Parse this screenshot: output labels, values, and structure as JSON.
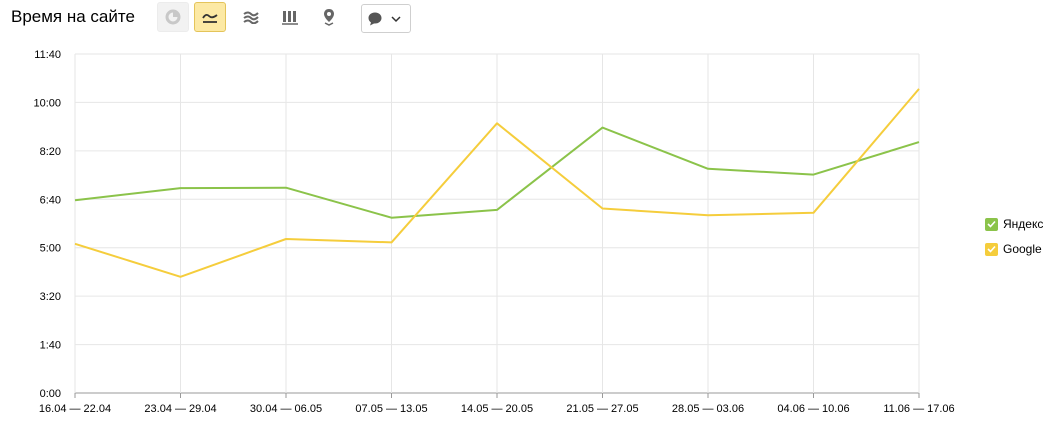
{
  "header": {
    "title": "Время на сайте",
    "buttons": [
      {
        "icon": "pie-chart-icon",
        "active": false
      },
      {
        "icon": "line-chart-icon",
        "active": true
      },
      {
        "icon": "area-chart-icon",
        "active": false
      },
      {
        "icon": "bar-chart-icon",
        "active": false
      },
      {
        "icon": "map-pin-icon",
        "active": false
      },
      {
        "icon": "comment-icon",
        "active": false
      }
    ]
  },
  "colors": {
    "yandex": "#8bc34a",
    "google": "#f5cd3c",
    "grid": "#e6e6e6",
    "active_button": "#fce9a4"
  },
  "chart_data": {
    "type": "line",
    "categories": [
      "16.04 — 22.04",
      "23.04 — 29.04",
      "30.04 — 06.05",
      "07.05 — 13.05",
      "14.05 — 20.05",
      "21.05 — 27.05",
      "28.05 — 03.06",
      "04.06 — 10.06",
      "11.06 — 17.06"
    ],
    "y_ticks": [
      "0:00",
      "1:40",
      "3:20",
      "5:00",
      "6:40",
      "8:20",
      "10:00",
      "11:40"
    ],
    "ylim": [
      0,
      700
    ],
    "y_unit": "seconds",
    "series": [
      {
        "name": "Яндекс",
        "color": "#8bc34a",
        "values": [
          398,
          423,
          424,
          362,
          378,
          548,
          463,
          451,
          518
        ]
      },
      {
        "name": "Google",
        "color": "#f5cd3c",
        "values": [
          308,
          240,
          318,
          311,
          557,
          381,
          367,
          372,
          628
        ]
      }
    ],
    "grid": true,
    "legend_position": "right"
  },
  "legend": {
    "items": [
      {
        "label": "Яндекс",
        "checked": true
      },
      {
        "label": "Google",
        "checked": true
      }
    ]
  }
}
